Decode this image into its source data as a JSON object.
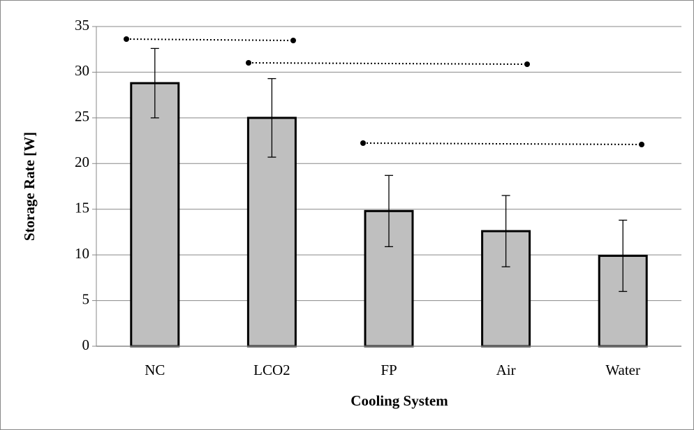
{
  "chart_data": {
    "type": "bar",
    "x_label": "Cooling System",
    "y_label": "Storage Rate [W]",
    "categories": [
      "NC",
      "LCO2",
      "FP",
      "Air",
      "Water"
    ],
    "values": [
      28.8,
      25.0,
      14.8,
      12.6,
      9.9
    ],
    "errors": [
      3.8,
      4.3,
      3.9,
      3.9,
      3.9
    ],
    "color": "#bfbfbf",
    "ylim": [
      0,
      35
    ],
    "yticks": [
      0,
      5,
      10,
      15,
      20,
      25,
      30,
      35
    ],
    "grid": true
  }
}
